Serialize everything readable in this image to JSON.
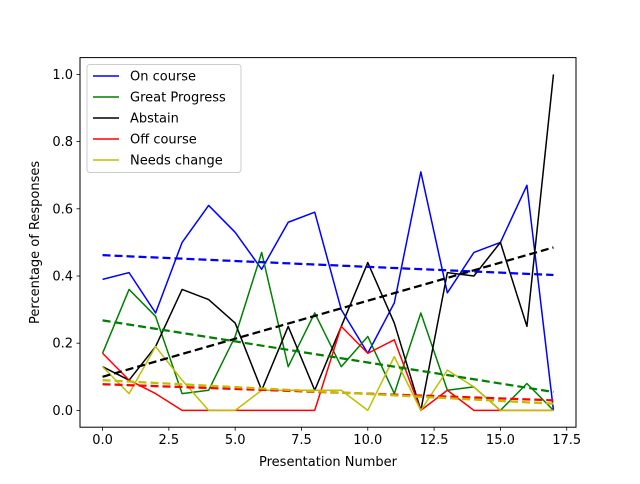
{
  "chart_data": {
    "type": "line",
    "title": "",
    "xlabel": "Presentation Number",
    "ylabel": "Percentage of Responses",
    "xlim": [
      -0.85,
      17.85
    ],
    "ylim": [
      -0.05,
      1.05
    ],
    "xticks": [
      0.0,
      2.5,
      5.0,
      7.5,
      10.0,
      12.5,
      15.0,
      17.5
    ],
    "xtick_labels": [
      "0.0",
      "2.5",
      "5.0",
      "7.5",
      "10.0",
      "12.5",
      "15.0",
      "17.5"
    ],
    "yticks": [
      0.0,
      0.2,
      0.4,
      0.6,
      0.8,
      1.0
    ],
    "ytick_labels": [
      "0.0",
      "0.2",
      "0.4",
      "0.6",
      "0.8",
      "1.0"
    ],
    "grid": false,
    "legend_position": "top-left",
    "x": [
      0,
      1,
      2,
      3,
      4,
      5,
      6,
      7,
      8,
      9,
      10,
      11,
      12,
      13,
      14,
      15,
      16,
      17
    ],
    "series": [
      {
        "name": "On course",
        "color": "#0000ff",
        "values": [
          0.39,
          0.41,
          0.29,
          0.5,
          0.61,
          0.53,
          0.42,
          0.56,
          0.59,
          0.3,
          0.17,
          0.32,
          0.71,
          0.35,
          0.47,
          0.5,
          0.67,
          0.0
        ],
        "trend": [
          0.462,
          0.403
        ]
      },
      {
        "name": "Great Progress",
        "color": "#008000",
        "values": [
          0.17,
          0.36,
          0.28,
          0.05,
          0.06,
          0.22,
          0.47,
          0.13,
          0.29,
          0.13,
          0.22,
          0.05,
          0.29,
          0.06,
          0.07,
          0.0,
          0.08,
          0.0
        ],
        "trend": [
          0.268,
          0.055
        ]
      },
      {
        "name": "Abstain",
        "color": "#000000",
        "values": [
          0.13,
          0.09,
          0.19,
          0.36,
          0.33,
          0.26,
          0.06,
          0.25,
          0.06,
          0.25,
          0.44,
          0.26,
          0.0,
          0.41,
          0.4,
          0.5,
          0.25,
          1.0
        ],
        "trend": [
          0.1,
          0.485
        ]
      },
      {
        "name": "Off course",
        "color": "#ff0000",
        "values": [
          0.17,
          0.09,
          0.05,
          0.0,
          0.0,
          0.0,
          0.0,
          0.0,
          0.0,
          0.25,
          0.17,
          0.21,
          0.0,
          0.06,
          0.0,
          0.0,
          0.0,
          0.0
        ],
        "trend": [
          0.078,
          0.03
        ]
      },
      {
        "name": "Needs change",
        "color": "#bfbf00",
        "values": [
          0.13,
          0.05,
          0.19,
          0.09,
          0.0,
          0.0,
          0.06,
          0.06,
          0.06,
          0.06,
          0.0,
          0.16,
          0.0,
          0.12,
          0.07,
          0.0,
          0.0,
          0.0
        ],
        "trend": [
          0.09,
          0.02
        ]
      }
    ]
  }
}
